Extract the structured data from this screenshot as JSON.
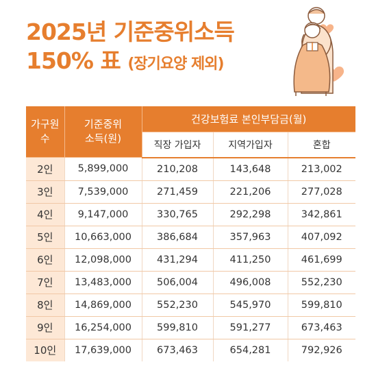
{
  "title": {
    "line1": "2025년 기준중위소득",
    "line2_main": "150% 표",
    "line2_sub": "(장기요양 제외)"
  },
  "table": {
    "header_household": "가구원\n수",
    "header_income": "기준중위\n소득(원)",
    "header_premium_group": "건강보험료 본인부담금(월)",
    "sub_headers": [
      "직장 가입자",
      "지역가입자",
      "혼합"
    ],
    "rows": [
      {
        "household": "2인",
        "income": "5,899,000",
        "workplace": "210,208",
        "regional": "143,648",
        "mixed": "213,002"
      },
      {
        "household": "3인",
        "income": "7,539,000",
        "workplace": "271,459",
        "regional": "221,206",
        "mixed": "277,028"
      },
      {
        "household": "4인",
        "income": "9,147,000",
        "workplace": "330,765",
        "regional": "292,298",
        "mixed": "342,861"
      },
      {
        "household": "5인",
        "income": "10,663,000",
        "workplace": "386,684",
        "regional": "357,963",
        "mixed": "407,092"
      },
      {
        "household": "6인",
        "income": "12,098,000",
        "workplace": "431,294",
        "regional": "411,250",
        "mixed": "461,699"
      },
      {
        "household": "7인",
        "income": "13,483,000",
        "workplace": "506,004",
        "regional": "496,008",
        "mixed": "552,230"
      },
      {
        "household": "8인",
        "income": "14,869,000",
        "workplace": "552,230",
        "regional": "545,970",
        "mixed": "599,810"
      },
      {
        "household": "9인",
        "income": "16,254,000",
        "workplace": "599,810",
        "regional": "591,277",
        "mixed": "673,463"
      },
      {
        "household": "10인",
        "income": "17,639,000",
        "workplace": "673,463",
        "regional": "654,281",
        "mixed": "792,926"
      }
    ]
  },
  "colors": {
    "accent": "#e67e2e",
    "row_header_bg": "#fde8d6",
    "heart": "#f7b48a"
  },
  "illustration": "elderly-couple-with-hearts"
}
